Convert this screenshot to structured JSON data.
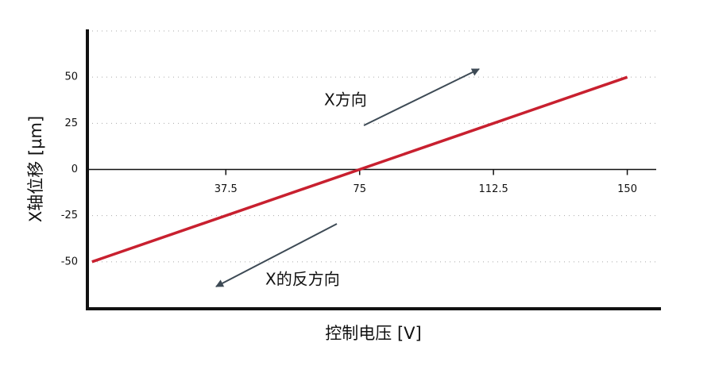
{
  "chart_data": {
    "type": "line",
    "x_label": "控制电压 [V]",
    "y_label": "X轴位移 [µm]",
    "x": [
      0,
      150
    ],
    "series": [
      {
        "name": "X轴位移",
        "color": "#c8202f",
        "values": [
          -50,
          50
        ]
      }
    ],
    "xlim": [
      -1.3,
      159
    ],
    "xticks": [
      37.5,
      75,
      112.5,
      150
    ],
    "ylim": [
      -75,
      75
    ],
    "yticks": [
      -50,
      -25,
      0,
      25,
      50
    ],
    "grid": true,
    "annotations": [
      "X方向",
      "X的反方向"
    ]
  }
}
